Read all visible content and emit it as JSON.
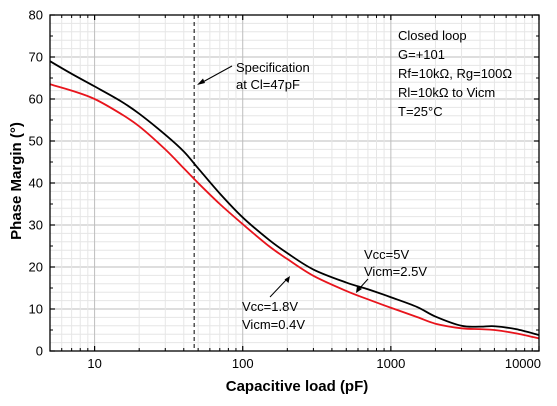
{
  "chart_data": {
    "type": "line",
    "xlabel": "Capacitive load (pF)",
    "ylabel": "Phase Margin (°)",
    "xscale": "log",
    "xlim": [
      5,
      10000
    ],
    "ylim": [
      0,
      80
    ],
    "x_ticks": [
      10,
      100,
      1000,
      10000
    ],
    "x_tick_labels": [
      "10",
      "100",
      "1000",
      "10000"
    ],
    "y_ticks": [
      0,
      10,
      20,
      30,
      40,
      50,
      60,
      70,
      80
    ],
    "y_tick_labels": [
      "0",
      "10",
      "20",
      "30",
      "40",
      "50",
      "60",
      "70",
      "80"
    ],
    "grid": true,
    "series": [
      {
        "name": "Vcc=5V Vicm=2.5V",
        "color": "#000000",
        "x": [
          5,
          7,
          10,
          15,
          20,
          30,
          40,
          50,
          70,
          100,
          150,
          200,
          300,
          500,
          700,
          1000,
          1500,
          2000,
          3000,
          4000,
          5000,
          7000,
          10000
        ],
        "y": [
          69,
          66,
          63,
          59.5,
          56.5,
          51.5,
          47.5,
          43.5,
          37.5,
          31.8,
          26.5,
          23.3,
          19.4,
          16.3,
          14.7,
          12.8,
          10.5,
          8.2,
          6.0,
          5.8,
          5.9,
          5.2,
          3.8
        ]
      },
      {
        "name": "Vcc=1.8V Vicm=0.4V",
        "color": "#e8141c",
        "x": [
          5,
          7,
          10,
          15,
          20,
          30,
          40,
          50,
          70,
          100,
          150,
          200,
          300,
          500,
          700,
          1000,
          1500,
          2000,
          3000,
          4000,
          5000,
          7000,
          10000
        ],
        "y": [
          63.5,
          62,
          60,
          56.5,
          53.5,
          48,
          43.5,
          40,
          35,
          30.2,
          25,
          21.9,
          17.9,
          14.3,
          12.3,
          10.3,
          8.1,
          6.5,
          5.4,
          5.2,
          5.0,
          4.2,
          3.0
        ]
      }
    ],
    "marker_line": {
      "x": 47,
      "style": "dashed"
    },
    "annotations": {
      "spec_line1": "Specification",
      "spec_line2": "at Cl=47pF",
      "cond_line1": "Closed loop",
      "cond_line2": "G=+101",
      "cond_line3": "Rf=10kΩ, Rg=100Ω",
      "cond_line4": "Rl=10kΩ to Vicm",
      "cond_line5": "T=25°C",
      "black_label_line1": "Vcc=5V",
      "black_label_line2": "Vicm=2.5V",
      "red_label_line1": "Vcc=1.8V",
      "red_label_line2": "Vicm=0.4V"
    }
  }
}
